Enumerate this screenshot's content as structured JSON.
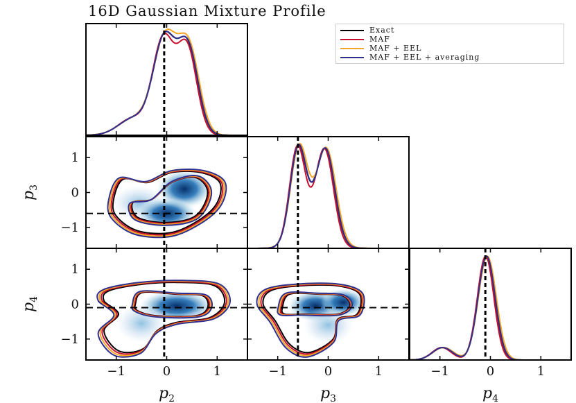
{
  "chart_data": {
    "type": "corner-plot",
    "title": "16D Gaussian Mixture Profile",
    "parameters": [
      "p2",
      "p3",
      "p4"
    ],
    "axis_labels": [
      "p_2",
      "p_3",
      "p_4"
    ],
    "range": [
      -1.6,
      1.6
    ],
    "ticks": [
      -1,
      0,
      1
    ],
    "tick_labels": [
      "−1",
      "0",
      "1"
    ],
    "truth": {
      "p2": -0.05,
      "p3": -0.6,
      "p4": -0.1
    },
    "series": [
      {
        "name": "Exact",
        "color": "#000000"
      },
      {
        "name": "MAF",
        "color": "#c8102e"
      },
      {
        "name": "MAF + EEL",
        "color": "#f5a623"
      },
      {
        "name": "MAF + EEL + averaging",
        "color": "#2e2f8f"
      }
    ],
    "marginals": [
      {
        "param": "p2",
        "peaks": [
          {
            "mu": -0.05,
            "sigma": 0.22,
            "amp": 1.0
          },
          {
            "mu": 0.42,
            "sigma": 0.2,
            "amp": 0.9
          },
          {
            "mu": -0.65,
            "sigma": 0.3,
            "amp": 0.18
          }
        ]
      },
      {
        "param": "p3",
        "peaks": [
          {
            "mu": -0.6,
            "sigma": 0.16,
            "amp": 1.0
          },
          {
            "mu": -0.05,
            "sigma": 0.18,
            "amp": 0.95
          },
          {
            "mu": -0.3,
            "sigma": 0.3,
            "amp": 0.2
          }
        ]
      },
      {
        "param": "p4",
        "peaks": [
          {
            "mu": -0.08,
            "sigma": 0.17,
            "amp": 1.0
          },
          {
            "mu": -0.95,
            "sigma": 0.2,
            "amp": 0.12
          }
        ]
      }
    ]
  },
  "legend_labels": [
    "Exact",
    "MAF",
    "MAF + EEL",
    "MAF + EEL + averaging"
  ]
}
